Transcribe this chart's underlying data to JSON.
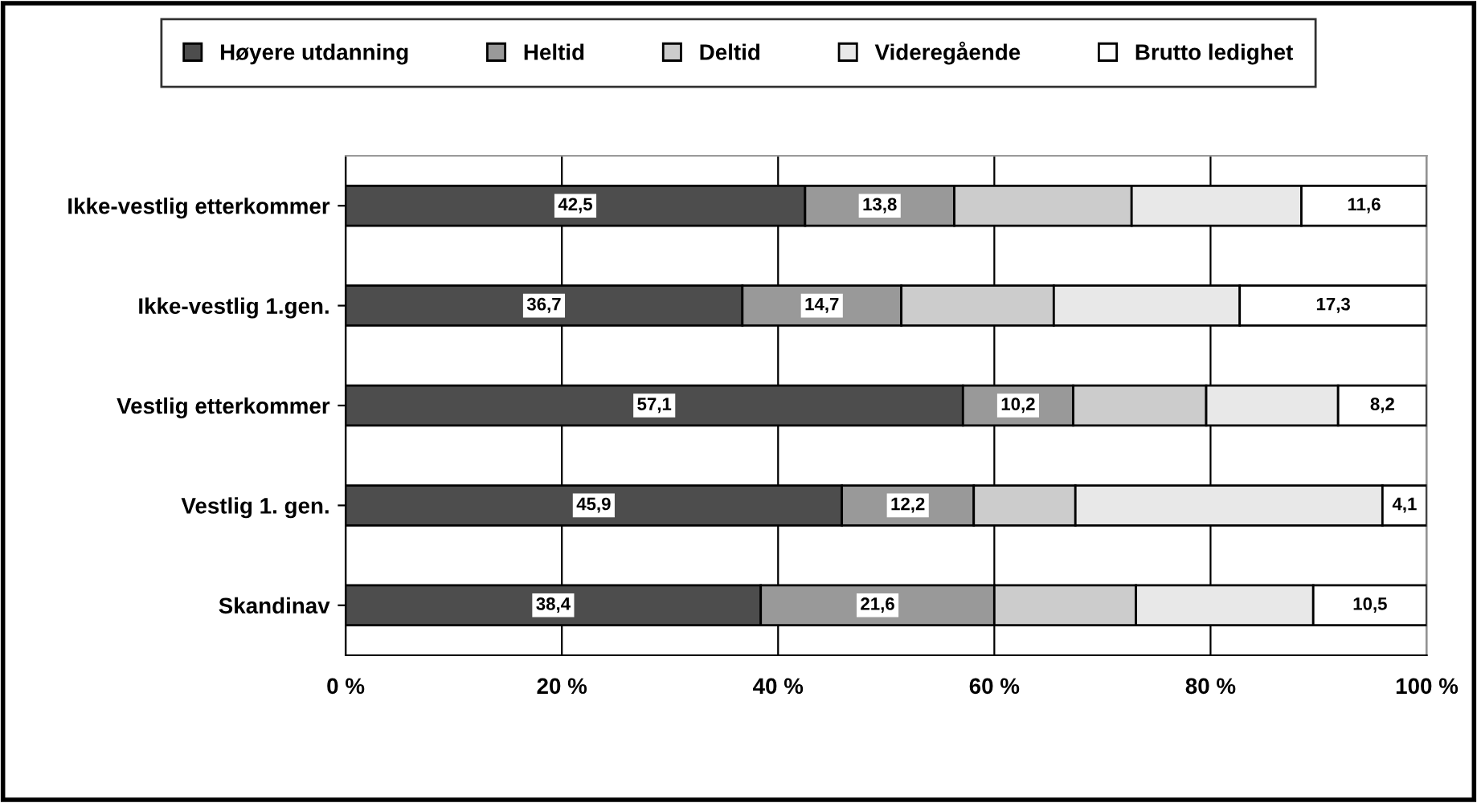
{
  "chart_data": {
    "type": "bar",
    "orientation": "horizontal",
    "stacked": true,
    "categories": [
      "Ikke-vestlig etterkommer",
      "Ikke-vestlig 1.gen.",
      "Vestlig etterkommer",
      "Vestlig 1. gen.",
      "Skandinav"
    ],
    "series": [
      {
        "name": "Høyere utdanning",
        "color": "#4d4d4d",
        "values": [
          42.5,
          36.7,
          57.1,
          45.9,
          38.4
        ],
        "value_labels": [
          "42,5",
          "36,7",
          "57,1",
          "45,9",
          "38,4"
        ]
      },
      {
        "name": "Heltid",
        "color": "#999999",
        "values": [
          13.8,
          14.7,
          10.2,
          12.2,
          21.6
        ],
        "value_labels": [
          "13,8",
          "14,7",
          "10,2",
          "12,2",
          "21,6"
        ]
      },
      {
        "name": "Deltid",
        "color": "#cccccc",
        "values": [
          16.4,
          14.1,
          12.3,
          9.4,
          13.1
        ]
      },
      {
        "name": "Videregående",
        "color": "#e8e8e8",
        "values": [
          15.7,
          17.2,
          12.2,
          28.4,
          16.4
        ]
      },
      {
        "name": "Brutto ledighet",
        "color": "#ffffff",
        "values": [
          11.6,
          17.3,
          8.2,
          4.1,
          10.5
        ],
        "value_labels": [
          "11,6",
          "17,3",
          "8,2",
          "4,1",
          "10,5"
        ]
      }
    ],
    "xlim": [
      0,
      100
    ],
    "xticks": [
      {
        "value": 0,
        "label": "0 %"
      },
      {
        "value": 20,
        "label": "20 %"
      },
      {
        "value": 40,
        "label": "40 %"
      },
      {
        "value": 60,
        "label": "60 %"
      },
      {
        "value": 80,
        "label": "80 %"
      },
      {
        "value": 100,
        "label": "100 %"
      }
    ],
    "grid": "x",
    "legend": "top"
  }
}
